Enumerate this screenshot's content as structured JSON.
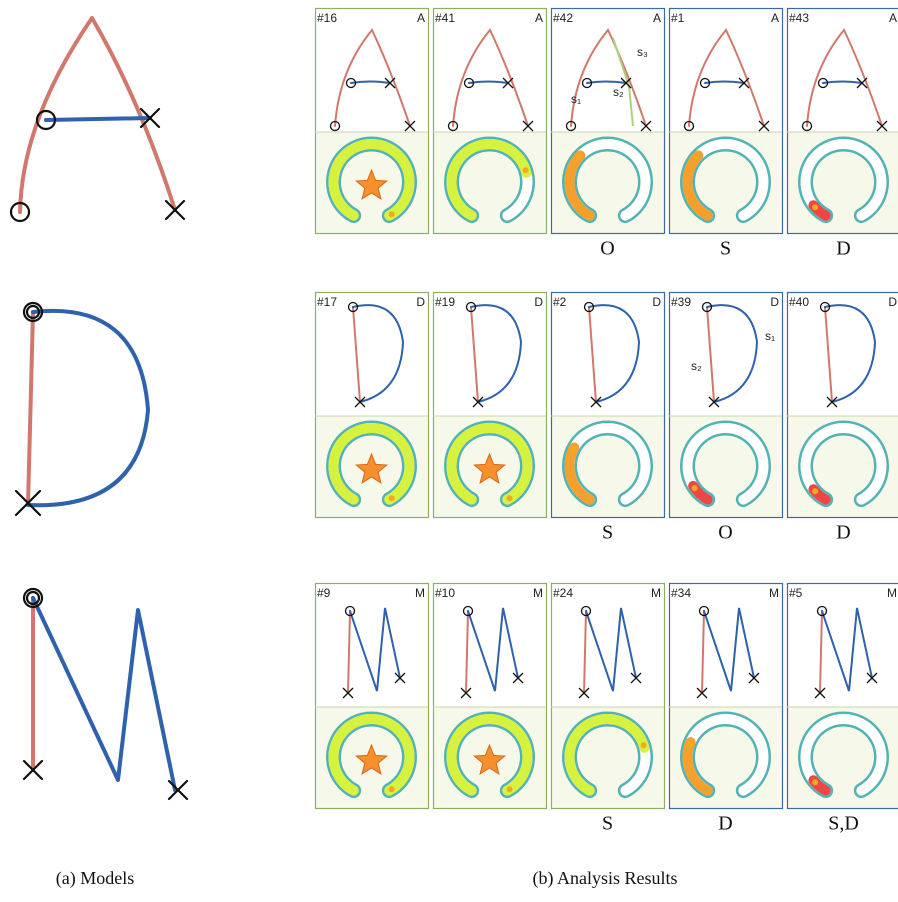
{
  "captions": {
    "models": "(a) Models",
    "results": "(b) Analysis Results"
  },
  "rows": [
    {
      "cards": [
        {
          "id": "#16",
          "letter": "A",
          "frame": "#8fae63",
          "gauge": {
            "color": "#d6f23e",
            "level": 1,
            "star": true
          }
        },
        {
          "id": "#41",
          "letter": "A",
          "frame": "#8fae63",
          "gauge": {
            "color": "#d6f23e",
            "level": 0.75,
            "star": false
          }
        },
        {
          "id": "#42",
          "letter": "A",
          "frame": "#3b68a6",
          "result": "O",
          "annotations": [
            "s₁",
            "s₂",
            "s₃"
          ],
          "gauge": {
            "color": "#f5a02c",
            "level": 0.35,
            "star": false
          }
        },
        {
          "id": "#1",
          "letter": "A",
          "frame": "#3b68a6",
          "result": "S",
          "gauge": {
            "color": "#f5a02c",
            "level": 0.35,
            "star": false
          }
        },
        {
          "id": "#43",
          "letter": "A",
          "frame": "#3b68a6",
          "result": "D",
          "gauge": {
            "color": "#f04545",
            "level": 0.08,
            "star": false
          }
        }
      ]
    },
    {
      "cards": [
        {
          "id": "#17",
          "letter": "D",
          "frame": "#8fae63",
          "gauge": {
            "color": "#d6f23e",
            "level": 1,
            "star": true
          }
        },
        {
          "id": "#19",
          "letter": "D",
          "frame": "#8fae63",
          "gauge": {
            "color": "#d6f23e",
            "level": 1,
            "star": true
          }
        },
        {
          "id": "#2",
          "letter": "D",
          "frame": "#3b68a6",
          "result": "S",
          "gauge": {
            "color": "#f5a02c",
            "level": 0.3,
            "star": false
          }
        },
        {
          "id": "#39",
          "letter": "D",
          "frame": "#3b68a6",
          "result": "O",
          "annotations": [
            "s₁",
            "s₂"
          ],
          "gauge": {
            "color": "#f04545",
            "level": 0.1,
            "star": false
          }
        },
        {
          "id": "#40",
          "letter": "D",
          "frame": "#3b68a6",
          "result": "D",
          "gauge": {
            "color": "#f04545",
            "level": 0.08,
            "star": false
          }
        }
      ]
    },
    {
      "cards": [
        {
          "id": "#9",
          "letter": "M",
          "frame": "#8fae63",
          "gauge": {
            "color": "#d6f23e",
            "level": 1,
            "star": true
          }
        },
        {
          "id": "#10",
          "letter": "M",
          "frame": "#8fae63",
          "gauge": {
            "color": "#d6f23e",
            "level": 1,
            "star": true
          }
        },
        {
          "id": "#24",
          "letter": "M",
          "frame": "#8fae63",
          "result": "S",
          "gauge": {
            "color": "#d6f23e",
            "level": 0.75,
            "star": false
          }
        },
        {
          "id": "#34",
          "letter": "M",
          "frame": "#3b68a6",
          "result": "D",
          "gauge": {
            "color": "#f5a02c",
            "level": 0.28,
            "star": false
          }
        },
        {
          "id": "#5",
          "letter": "M",
          "frame": "#3b68a6",
          "result": "S,D",
          "gauge": {
            "color": "#f04545",
            "level": 0.08,
            "star": false
          }
        }
      ]
    }
  ]
}
